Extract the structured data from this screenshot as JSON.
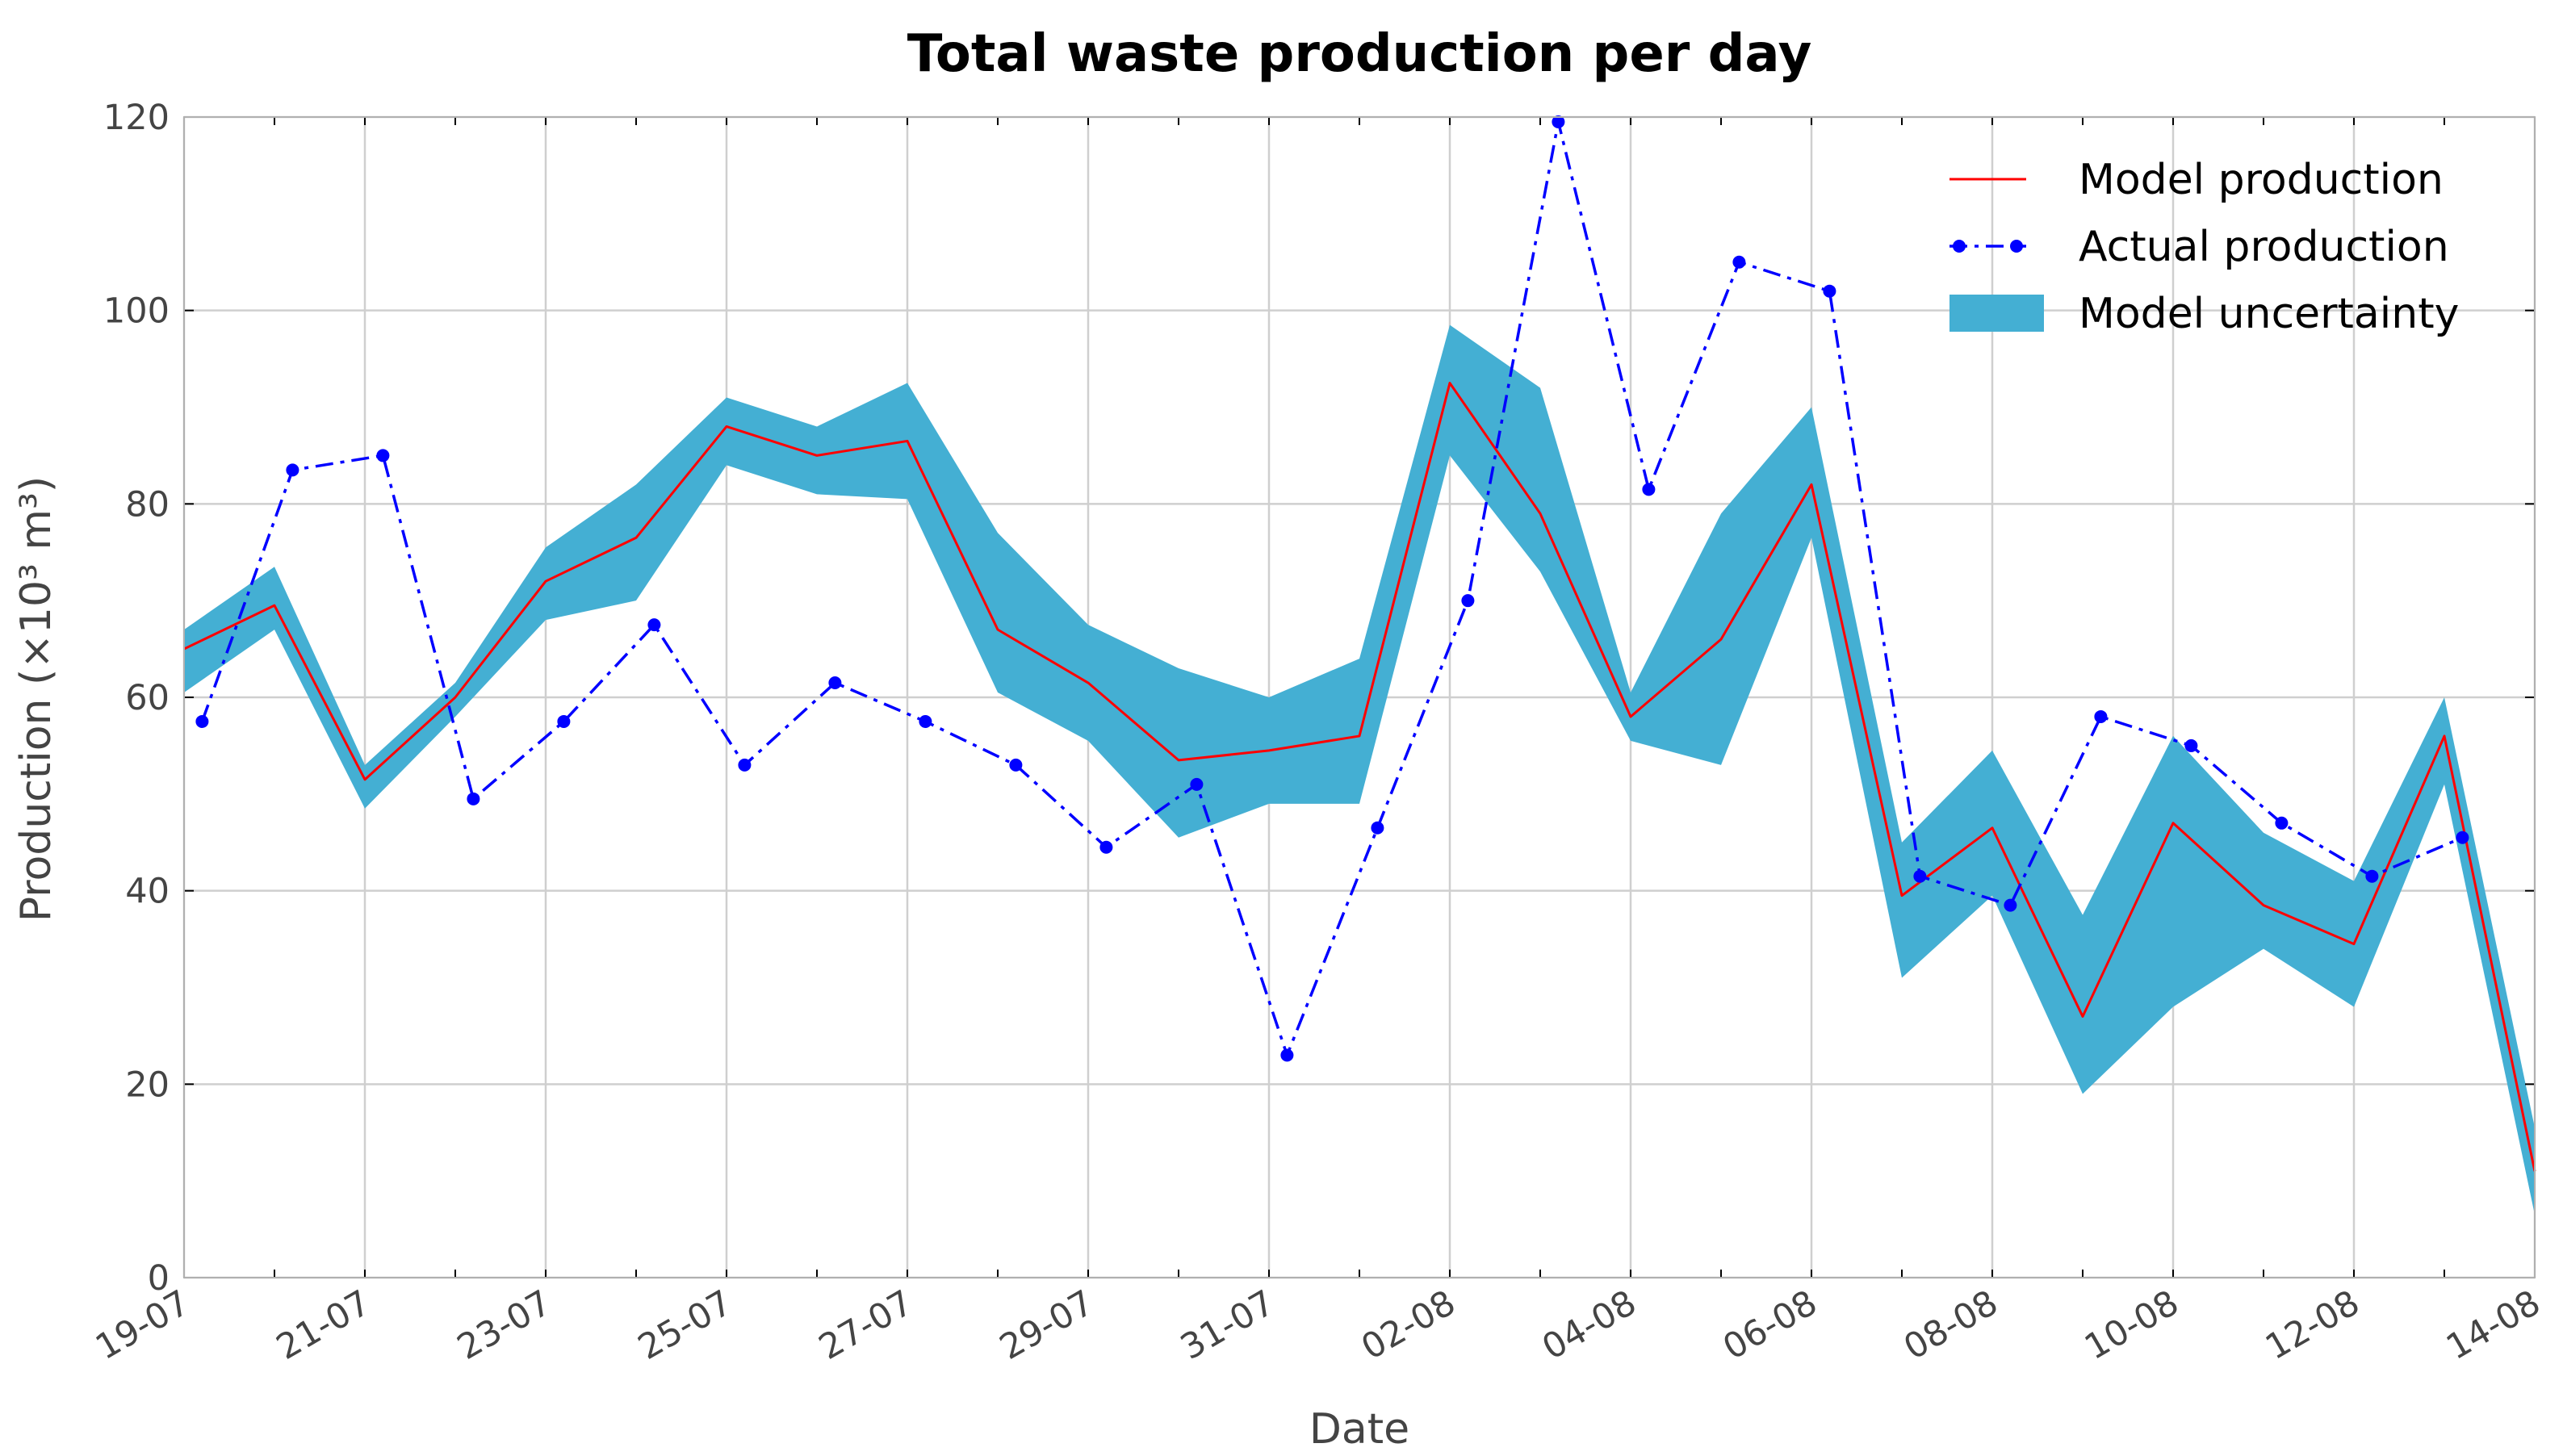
{
  "chart_data": {
    "type": "line",
    "title": "Total waste production per day",
    "xlabel": "Date",
    "ylabel": "Production (×10³ m³)",
    "ylim": [
      0,
      120
    ],
    "yticks": [
      0,
      20,
      40,
      60,
      80,
      100,
      120
    ],
    "xlim": [
      0,
      26
    ],
    "xtick_labels": [
      "19-07",
      "21-07",
      "23-07",
      "25-07",
      "27-07",
      "29-07",
      "31-07",
      "02-08",
      "04-08",
      "06-08",
      "08-08",
      "10-08",
      "12-08",
      "14-08"
    ],
    "grid": true,
    "legend_position": "top-right",
    "series": [
      {
        "name": "Model production",
        "color": "#ff0000",
        "style": "solid",
        "x": [
          0,
          1,
          2,
          3,
          4,
          5,
          6,
          7,
          8,
          9,
          10,
          11,
          12,
          13,
          14,
          15,
          16,
          17,
          18,
          19,
          20,
          21,
          22,
          23,
          24,
          25,
          26
        ],
        "values": [
          65,
          69.5,
          51.5,
          60,
          72,
          76.5,
          88,
          85,
          86.5,
          67,
          61.5,
          53.5,
          54.5,
          56,
          92.5,
          79,
          58,
          66,
          82,
          39.5,
          46.5,
          27,
          47,
          38.5,
          34.5,
          56,
          11
        ]
      },
      {
        "name": "Actual production",
        "color": "#0000ff",
        "style": "dashdot",
        "x": [
          0.2,
          1.2,
          2.2,
          3.2,
          4.2,
          5.2,
          6.2,
          7.2,
          8.2,
          9.2,
          10.2,
          11.2,
          12.2,
          13.2,
          14.2,
          15.2,
          16.2,
          17.2,
          18.2,
          19.2,
          20.2,
          21.2,
          22.2,
          23.2,
          24.2,
          25.2
        ],
        "values": [
          57.5,
          83.5,
          85,
          49.5,
          57.5,
          67.5,
          53,
          61.5,
          57.5,
          53,
          44.5,
          51,
          23,
          46.5,
          70,
          119.5,
          81.5,
          105,
          102,
          41.5,
          38.5,
          58,
          55,
          47,
          41.5,
          45.5
        ]
      }
    ],
    "band": {
      "name": "Model uncertainty",
      "color": "#44afd3",
      "x": [
        0,
        1,
        2,
        3,
        4,
        5,
        6,
        7,
        8,
        9,
        10,
        11,
        12,
        13,
        14,
        15,
        16,
        17,
        18,
        19,
        20,
        21,
        22,
        23,
        24,
        25,
        26
      ],
      "lower": [
        60.5,
        67,
        48.5,
        58,
        68,
        70,
        84,
        81,
        80.5,
        60.5,
        55.5,
        45.5,
        49,
        49,
        85,
        73,
        55.5,
        53,
        76.5,
        31,
        39.5,
        19,
        28,
        34,
        28,
        51,
        6.5
      ],
      "upper": [
        67,
        73.5,
        53,
        61.5,
        75.5,
        82,
        91,
        88,
        92.5,
        77,
        67.5,
        63,
        60,
        64,
        98.5,
        92,
        60.5,
        79,
        90,
        45,
        54.5,
        37.5,
        56,
        46,
        41,
        60,
        15.5
      ]
    }
  }
}
